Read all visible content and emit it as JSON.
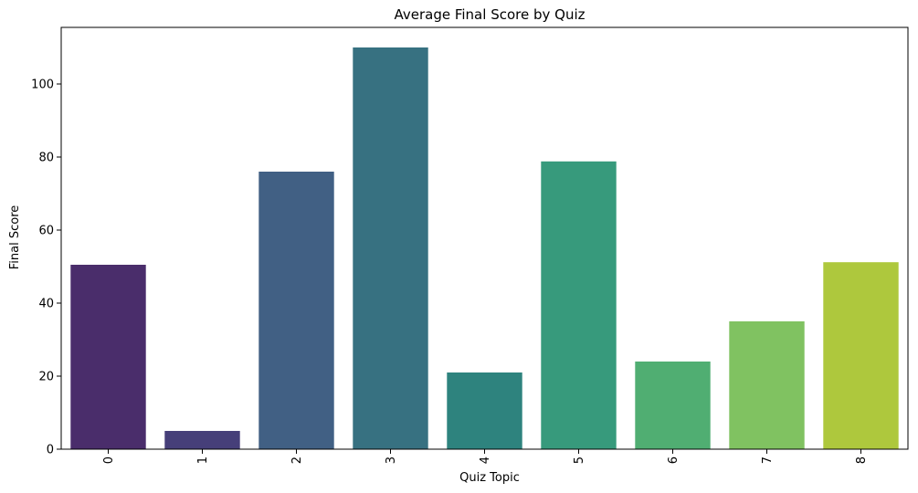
{
  "chart_data": {
    "type": "bar",
    "title": "Average Final Score by Quiz",
    "xlabel": "Quiz Topic",
    "ylabel": "Final Score",
    "categories": [
      "0",
      "1",
      "2",
      "3",
      "4",
      "5",
      "6",
      "7",
      "8"
    ],
    "values": [
      50.5,
      5,
      76,
      110,
      21,
      78.8,
      24,
      35,
      51.2
    ],
    "colors": [
      "#4a2d6b",
      "#463f79",
      "#416084",
      "#377181",
      "#2e837e",
      "#379a7c",
      "#50ae72",
      "#80c261",
      "#aec83d"
    ],
    "ylim": [
      0,
      115.5
    ],
    "yticks": [
      0,
      20,
      40,
      60,
      80,
      100
    ],
    "grid": false,
    "legend": "none",
    "x_tick_rotation": "vertical"
  }
}
